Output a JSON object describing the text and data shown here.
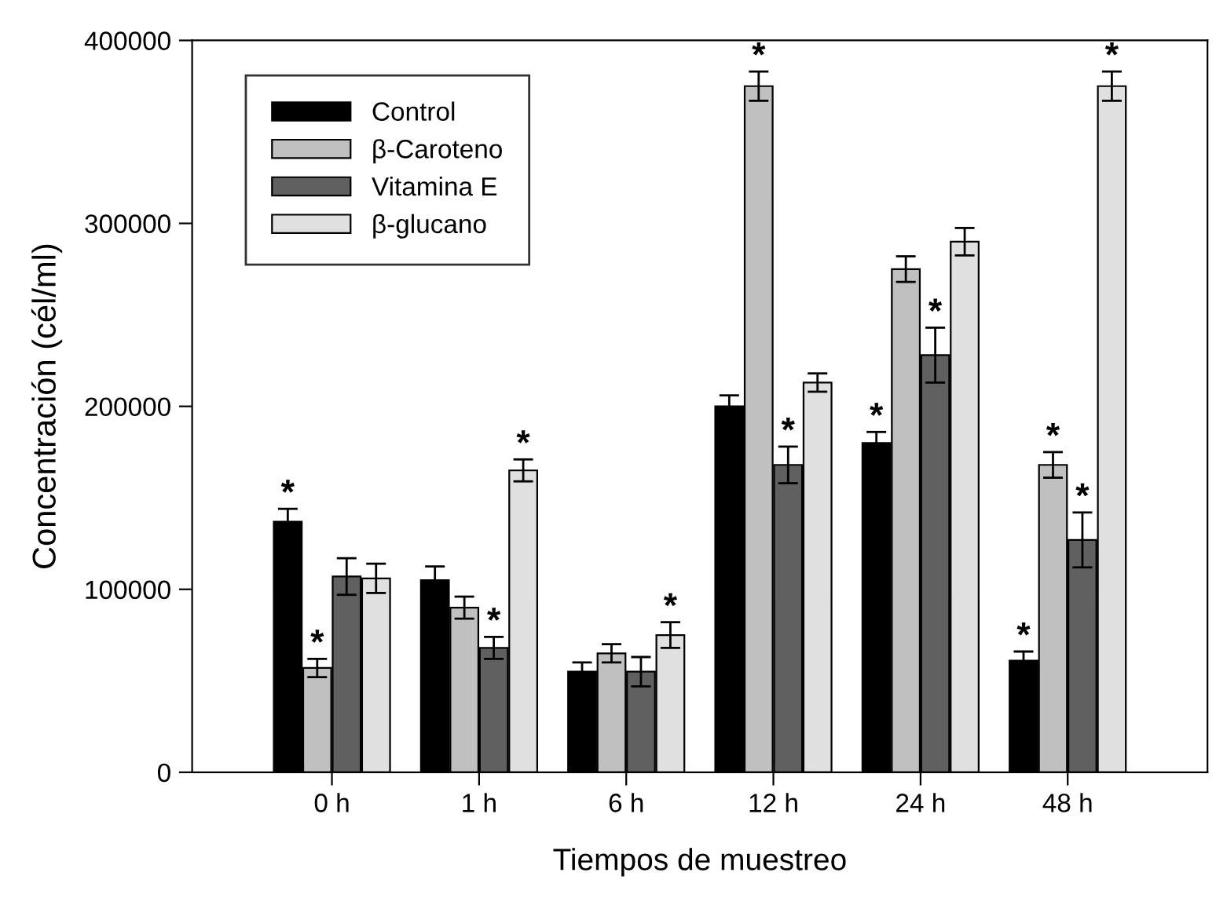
{
  "chart_data": {
    "type": "bar",
    "xlabel": "Tiempos de muestreo",
    "ylabel": "Concentración (cél/ml)",
    "categories": [
      "0 h",
      "1 h",
      "6 h",
      "12 h",
      "24 h",
      "48 h"
    ],
    "series": [
      {
        "name": "Control",
        "color": "#000000",
        "values": [
          137000,
          105000,
          55000,
          200000,
          180000,
          61000
        ],
        "errors": [
          7000,
          7500,
          5000,
          6000,
          6000,
          5000
        ],
        "value_labels": [
          "*",
          null,
          null,
          null,
          "*",
          "*"
        ]
      },
      {
        "name": "β-Caroteno",
        "color": "#c0c0c0",
        "values": [
          57000,
          90000,
          65000,
          375000,
          275000,
          168000
        ],
        "errors": [
          5000,
          6000,
          5000,
          8000,
          7000,
          7000
        ],
        "value_labels": [
          "*",
          null,
          null,
          "*",
          null,
          "*"
        ]
      },
      {
        "name": "Vitamina E",
        "color": "#606060",
        "values": [
          107000,
          68000,
          55000,
          168000,
          228000,
          127000
        ],
        "errors": [
          10000,
          6000,
          8000,
          10000,
          15000,
          15000
        ],
        "value_labels": [
          null,
          "*",
          null,
          "*",
          "*",
          "*"
        ]
      },
      {
        "name": "β-glucano",
        "color": "#e0e0e0",
        "values": [
          106000,
          165000,
          75000,
          213000,
          290000,
          375000
        ],
        "errors": [
          8000,
          6000,
          7000,
          5000,
          7500,
          8000
        ],
        "value_labels": [
          null,
          "*",
          "*",
          null,
          null,
          "*"
        ]
      }
    ],
    "ylim": [
      0,
      400000
    ],
    "yticks": [
      0,
      100000,
      200000,
      300000,
      400000
    ],
    "grid": false,
    "legend": "top left"
  }
}
